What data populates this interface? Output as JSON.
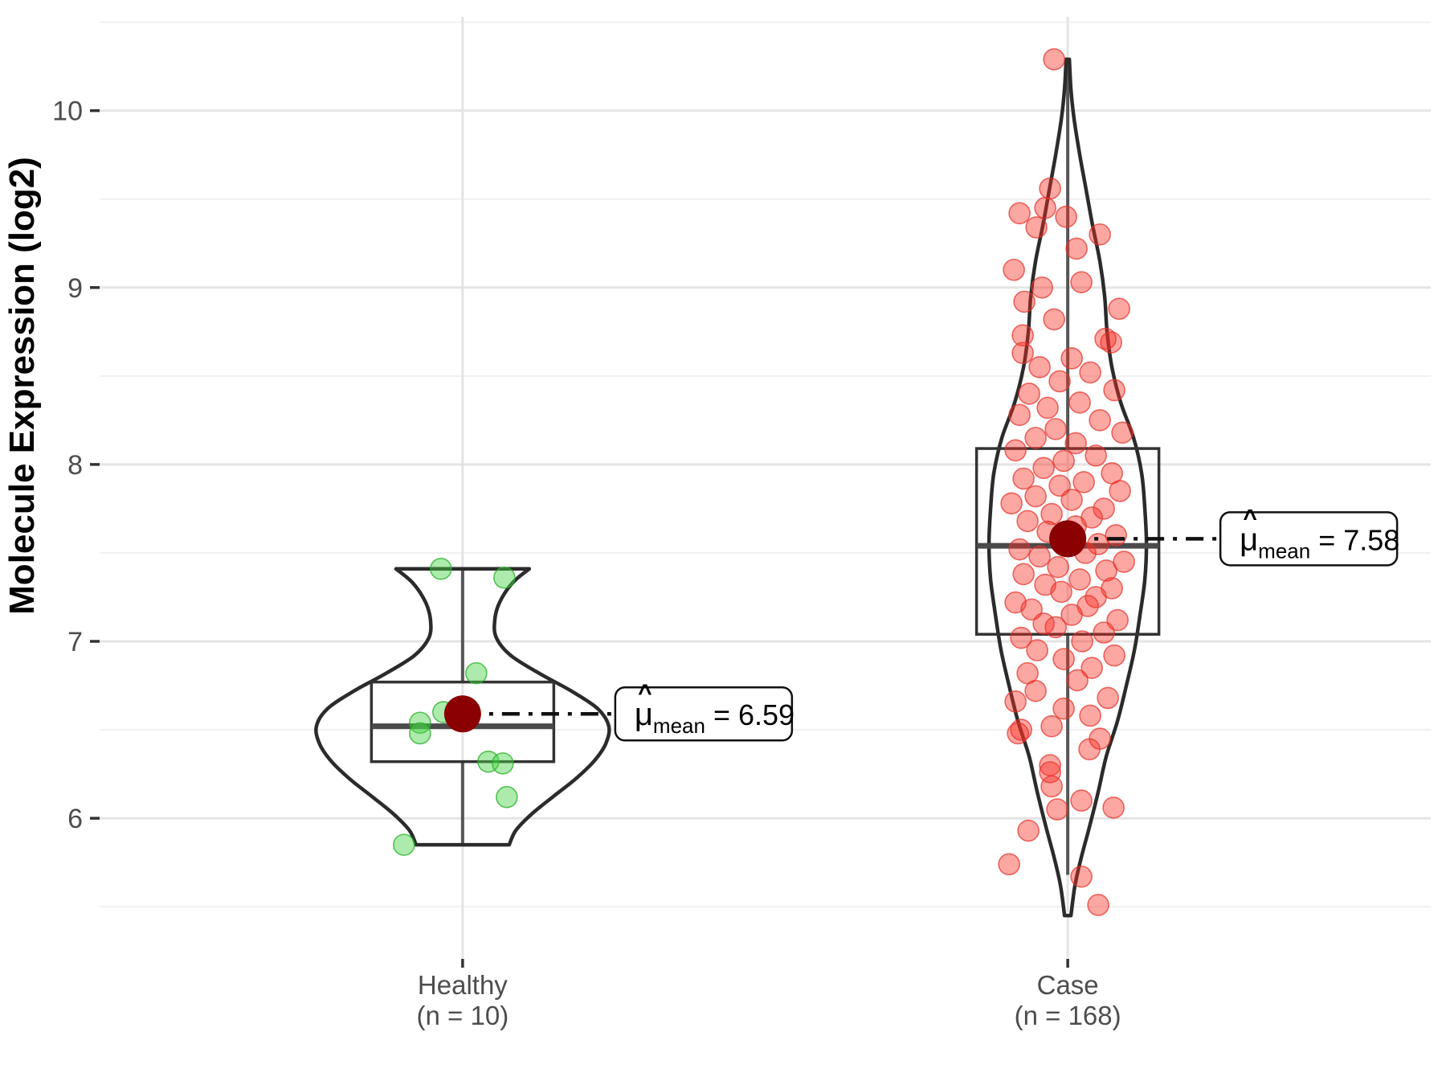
{
  "chart_data": {
    "type": "violin",
    "title": "",
    "xlabel": "",
    "ylabel": "Molecule Expression (log2)",
    "ylim": [
      5.21,
      10.53
    ],
    "y_major_ticks": [
      6,
      7,
      8,
      9,
      10
    ],
    "y_minor_ticks": [
      5.5,
      6.5,
      7.5,
      8.5,
      9.5,
      10.5
    ],
    "grid": true,
    "legend": "none",
    "annotation_parts": {
      "hat": "^",
      "mu": "μ",
      "sub": "mean",
      "equals": " = "
    },
    "groups": [
      {
        "name": "Healthy",
        "label_lines": [
          "Healthy",
          "(n = 10)"
        ],
        "n": 10,
        "mean": 6.59,
        "annotation_value": "6.59",
        "median": 6.52,
        "q1": 6.32,
        "q3": 6.77,
        "whisker_low": 5.85,
        "whisker_high": 7.41,
        "point_fill": "rgba(70,210,70,0.45)",
        "point_stroke": "rgba(40,175,40,0.75)",
        "points": [
          [
            7.41,
            -27
          ],
          [
            7.36,
            52
          ],
          [
            6.82,
            17
          ],
          [
            6.6,
            -24
          ],
          [
            6.54,
            -53
          ],
          [
            6.48,
            -53
          ],
          [
            6.32,
            32
          ],
          [
            6.31,
            50
          ],
          [
            6.12,
            55
          ],
          [
            5.85,
            -73
          ]
        ],
        "violin_profile": [
          [
            7.41,
            83
          ],
          [
            7.33,
            62
          ],
          [
            7.22,
            46
          ],
          [
            7.12,
            40
          ],
          [
            7.02,
            42
          ],
          [
            6.92,
            60
          ],
          [
            6.82,
            95
          ],
          [
            6.72,
            135
          ],
          [
            6.62,
            168
          ],
          [
            6.52,
            182
          ],
          [
            6.42,
            178
          ],
          [
            6.32,
            163
          ],
          [
            6.22,
            140
          ],
          [
            6.12,
            112
          ],
          [
            6.02,
            85
          ],
          [
            5.93,
            66
          ],
          [
            5.85,
            58
          ]
        ]
      },
      {
        "name": "Case",
        "label_lines": [
          "Case",
          "(n = 168)"
        ],
        "n": 168,
        "mean": 7.58,
        "annotation_value": "7.58",
        "median": 7.54,
        "q1": 7.04,
        "q3": 8.09,
        "whisker_low": 5.68,
        "whisker_high": 10.28,
        "point_fill": "rgba(250,45,35,0.42)",
        "point_stroke": "rgba(228,48,40,0.7)",
        "points": [
          [
            10.29,
            -17
          ],
          [
            9.56,
            -22
          ],
          [
            9.45,
            -28
          ],
          [
            9.42,
            -60
          ],
          [
            9.4,
            -2
          ],
          [
            9.34,
            -39
          ],
          [
            9.3,
            40
          ],
          [
            9.22,
            11
          ],
          [
            9.1,
            -67
          ],
          [
            9.03,
            17
          ],
          [
            9.0,
            -32
          ],
          [
            8.92,
            -54
          ],
          [
            8.88,
            64
          ],
          [
            8.82,
            -17
          ],
          [
            8.73,
            -56
          ],
          [
            8.71,
            47
          ],
          [
            8.69,
            54
          ],
          [
            8.63,
            -56
          ],
          [
            8.6,
            5
          ],
          [
            8.55,
            -35
          ],
          [
            8.52,
            28
          ],
          [
            8.47,
            -10
          ],
          [
            8.42,
            58
          ],
          [
            8.4,
            -48
          ],
          [
            8.35,
            15
          ],
          [
            8.32,
            -25
          ],
          [
            8.28,
            -60
          ],
          [
            8.25,
            40
          ],
          [
            8.2,
            -15
          ],
          [
            8.18,
            68
          ],
          [
            8.15,
            -40
          ],
          [
            8.12,
            10
          ],
          [
            8.08,
            -65
          ],
          [
            8.05,
            35
          ],
          [
            8.02,
            -5
          ],
          [
            7.98,
            -30
          ],
          [
            7.95,
            55
          ],
          [
            7.92,
            -55
          ],
          [
            7.9,
            20
          ],
          [
            7.88,
            -10
          ],
          [
            7.85,
            65
          ],
          [
            7.82,
            -40
          ],
          [
            7.8,
            5
          ],
          [
            7.78,
            -70
          ],
          [
            7.75,
            45
          ],
          [
            7.72,
            -20
          ],
          [
            7.7,
            30
          ],
          [
            7.68,
            -50
          ],
          [
            7.65,
            10
          ],
          [
            7.62,
            -25
          ],
          [
            7.6,
            60
          ],
          [
            7.58,
            -5
          ],
          [
            7.55,
            38
          ],
          [
            7.52,
            -60
          ],
          [
            7.5,
            22
          ],
          [
            7.48,
            -35
          ],
          [
            7.45,
            70
          ],
          [
            7.42,
            -12
          ],
          [
            7.4,
            48
          ],
          [
            7.38,
            -55
          ],
          [
            7.35,
            15
          ],
          [
            7.32,
            -28
          ],
          [
            7.3,
            55
          ],
          [
            7.28,
            -8
          ],
          [
            7.25,
            35
          ],
          [
            7.22,
            -65
          ],
          [
            7.2,
            25
          ],
          [
            7.18,
            -45
          ],
          [
            7.15,
            5
          ],
          [
            7.12,
            62
          ],
          [
            7.1,
            -30
          ],
          [
            7.08,
            -15
          ],
          [
            7.05,
            45
          ],
          [
            7.02,
            -58
          ],
          [
            7.0,
            18
          ],
          [
            6.95,
            -38
          ],
          [
            6.92,
            58
          ],
          [
            6.9,
            -5
          ],
          [
            6.85,
            30
          ],
          [
            6.82,
            -50
          ],
          [
            6.78,
            12
          ],
          [
            6.72,
            -40
          ],
          [
            6.68,
            50
          ],
          [
            6.66,
            -65
          ],
          [
            6.62,
            -5
          ],
          [
            6.58,
            28
          ],
          [
            6.52,
            -20
          ],
          [
            6.5,
            -58
          ],
          [
            6.48,
            -62
          ],
          [
            6.45,
            40
          ],
          [
            6.39,
            27
          ],
          [
            6.3,
            -22
          ],
          [
            6.26,
            -22
          ],
          [
            6.18,
            -20
          ],
          [
            6.1,
            17
          ],
          [
            6.06,
            57
          ],
          [
            6.05,
            -13
          ],
          [
            5.93,
            -49
          ],
          [
            5.74,
            -73
          ],
          [
            5.67,
            17
          ],
          [
            5.51,
            38
          ]
        ],
        "violin_profile": [
          [
            10.29,
            2
          ],
          [
            10.12,
            4
          ],
          [
            9.95,
            8
          ],
          [
            9.75,
            15
          ],
          [
            9.55,
            23
          ],
          [
            9.35,
            31
          ],
          [
            9.15,
            40
          ],
          [
            8.95,
            46
          ],
          [
            8.75,
            49
          ],
          [
            8.55,
            55
          ],
          [
            8.35,
            66
          ],
          [
            8.15,
            82
          ],
          [
            7.95,
            92
          ],
          [
            7.75,
            96
          ],
          [
            7.55,
            98
          ],
          [
            7.35,
            96
          ],
          [
            7.15,
            90
          ],
          [
            6.95,
            83
          ],
          [
            6.75,
            73
          ],
          [
            6.55,
            62
          ],
          [
            6.35,
            48
          ],
          [
            6.15,
            38
          ],
          [
            5.95,
            27
          ],
          [
            5.78,
            17
          ],
          [
            5.62,
            9
          ],
          [
            5.45,
            4
          ]
        ]
      }
    ],
    "colors": {
      "grid_major": "#E4E4E4",
      "grid_minor": "#F1F1F1",
      "tick": "#333333",
      "axis_text": "#4D4D4D",
      "axis_title": "#000000",
      "violin_stroke": "#2B2B2B",
      "box_stroke": "#333333",
      "median": "#4A4A4A",
      "whisker": "#555555",
      "mean_dot": "#8B0000",
      "dash_line": "#111111",
      "annotation_border": "#111111",
      "annotation_bg": "#FFFFFF",
      "annotation_text": "#000000"
    }
  }
}
